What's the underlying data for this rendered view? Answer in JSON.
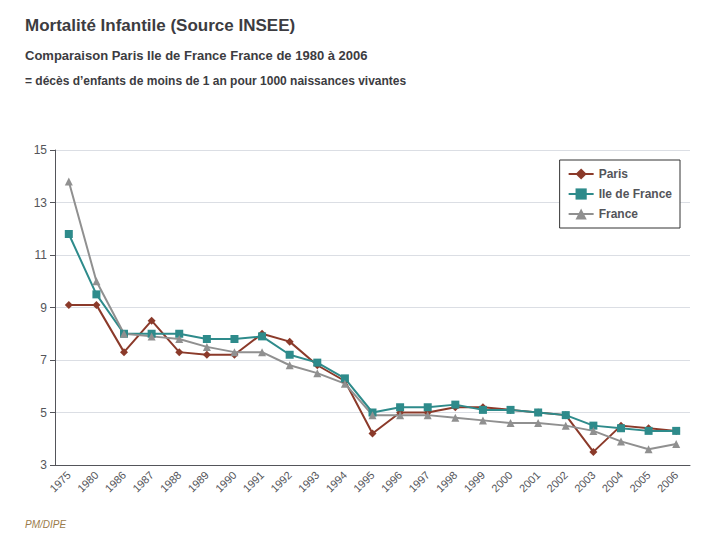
{
  "chart_data": {
    "type": "line",
    "title": "Mortalité Infantile (Source INSEE)",
    "subtitle": "Comparaison Paris Ile de France France de 1980 à 2006",
    "annotations": [
      "= décès d’enfants de moins de 1 an pour 1000 naissances vivantes",
      "PM/DIPE"
    ],
    "categories": [
      "1975",
      "1980",
      "1986",
      "1987",
      "1988",
      "1989",
      "1990",
      "1991",
      "1992",
      "1993",
      "1994",
      "1995",
      "1996",
      "1997",
      "1998",
      "1999",
      "2000",
      "2001",
      "2002",
      "2003",
      "2004",
      "2005",
      "2006"
    ],
    "series": [
      {
        "name": "Paris",
        "color": "#8B3A2A",
        "marker": "diamond",
        "values": [
          9.1,
          9.1,
          7.3,
          8.5,
          7.3,
          7.2,
          7.2,
          8.0,
          7.7,
          6.8,
          6.2,
          4.2,
          5.0,
          5.0,
          5.2,
          5.2,
          5.1,
          5.0,
          4.9,
          3.5,
          4.5,
          4.4,
          4.3
        ]
      },
      {
        "name": "Ile de France",
        "color": "#2E8B8B",
        "marker": "square",
        "values": [
          11.8,
          9.5,
          8.0,
          8.0,
          8.0,
          7.8,
          7.8,
          7.9,
          7.2,
          6.9,
          6.3,
          5.0,
          5.2,
          5.2,
          5.3,
          5.1,
          5.1,
          5.0,
          4.9,
          4.5,
          4.4,
          4.3,
          4.3
        ]
      },
      {
        "name": "France",
        "color": "#909090",
        "marker": "triangle",
        "values": [
          13.8,
          10.0,
          8.0,
          7.9,
          7.8,
          7.5,
          7.3,
          7.3,
          6.8,
          6.5,
          6.1,
          4.9,
          4.9,
          4.9,
          4.8,
          4.7,
          4.6,
          4.6,
          4.5,
          4.3,
          3.9,
          3.6,
          3.8
        ]
      }
    ],
    "ylim": [
      3,
      15
    ],
    "yticks": [
      3,
      5,
      7,
      9,
      11,
      13,
      15
    ],
    "grid": true,
    "legend": "upper right"
  }
}
